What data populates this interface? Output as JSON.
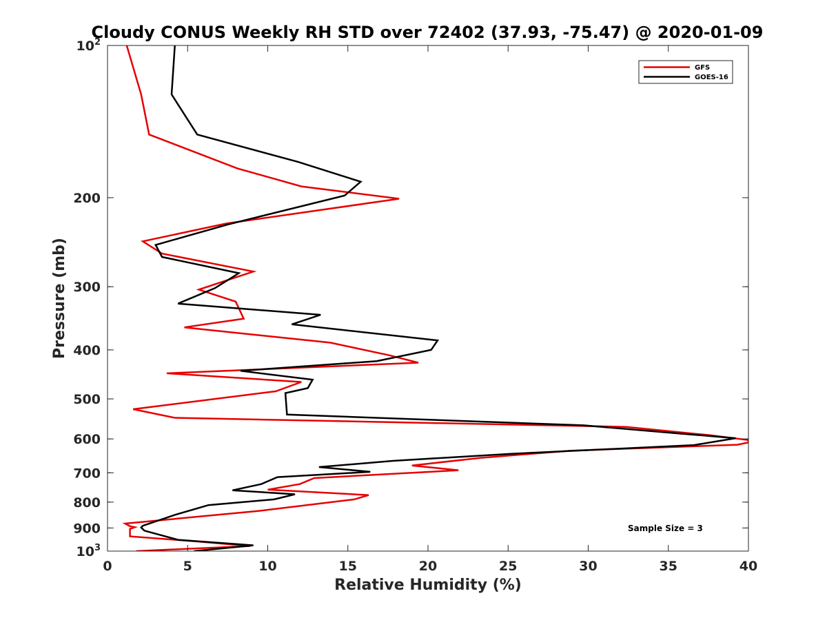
{
  "chart_data": {
    "type": "line",
    "title": "Cloudy CONUS Weekly RH STD over 72402 (37.93, -75.47) @ 2020-01-09",
    "xlabel": "Relative Humidity (%)",
    "ylabel": "Pressure (mb)",
    "xlim": [
      0,
      40
    ],
    "ylim": [
      100,
      1000
    ],
    "y_scale": "log",
    "y_reversed": true,
    "grid": false,
    "legend_position": "top-right",
    "x_ticks": [
      {
        "value": 0,
        "label": "0"
      },
      {
        "value": 5,
        "label": "5"
      },
      {
        "value": 10,
        "label": "10"
      },
      {
        "value": 15,
        "label": "15"
      },
      {
        "value": 20,
        "label": "20"
      },
      {
        "value": 25,
        "label": "25"
      },
      {
        "value": 30,
        "label": "30"
      },
      {
        "value": 35,
        "label": "35"
      },
      {
        "value": 40,
        "label": "40"
      }
    ],
    "y_ticks": [
      {
        "value": 100,
        "base": "10",
        "exp": "2"
      },
      {
        "value": 200,
        "base": "200",
        "exp": ""
      },
      {
        "value": 300,
        "base": "300",
        "exp": ""
      },
      {
        "value": 400,
        "base": "400",
        "exp": ""
      },
      {
        "value": 500,
        "base": "500",
        "exp": ""
      },
      {
        "value": 600,
        "base": "600",
        "exp": ""
      },
      {
        "value": 700,
        "base": "700",
        "exp": ""
      },
      {
        "value": 800,
        "base": "800",
        "exp": ""
      },
      {
        "value": 900,
        "base": "900",
        "exp": ""
      },
      {
        "value": 1000,
        "base": "10",
        "exp": "3"
      }
    ],
    "series": [
      {
        "name": "GFS",
        "color": "#e60000",
        "points": [
          [
            1.2,
            100
          ],
          [
            2.1,
            125
          ],
          [
            2.6,
            150
          ],
          [
            8.1,
            175
          ],
          [
            12.1,
            190
          ],
          [
            18.2,
            201
          ],
          [
            7.4,
            225
          ],
          [
            2.2,
            244
          ],
          [
            3.4,
            258
          ],
          [
            9.1,
            280
          ],
          [
            5.7,
            304
          ],
          [
            8.0,
            321
          ],
          [
            8.5,
            347
          ],
          [
            4.8,
            361
          ],
          [
            13.9,
            387
          ],
          [
            17.6,
            410
          ],
          [
            19.4,
            424
          ],
          [
            3.7,
            445
          ],
          [
            12.1,
            463
          ],
          [
            10.5,
            483
          ],
          [
            1.6,
            524
          ],
          [
            4.2,
            545
          ],
          [
            32.4,
            568
          ],
          [
            37.6,
            590
          ],
          [
            40.0,
            603
          ],
          [
            40.0,
            610
          ],
          [
            39.3,
            616
          ],
          [
            28.9,
            633
          ],
          [
            23.3,
            654
          ],
          [
            19.0,
            677
          ],
          [
            21.9,
            692
          ],
          [
            12.9,
            717
          ],
          [
            12.0,
            737
          ],
          [
            10.0,
            756
          ],
          [
            16.3,
            775
          ],
          [
            15.4,
            790
          ],
          [
            9.4,
            833
          ],
          [
            1.1,
            882
          ],
          [
            1.4,
            893
          ],
          [
            1.7,
            897
          ],
          [
            1.4,
            904
          ],
          [
            1.4,
            935
          ],
          [
            5.6,
            957
          ],
          [
            8.9,
            977
          ],
          [
            1.8,
            1000
          ]
        ]
      },
      {
        "name": "GOES-16",
        "color": "#000000",
        "points": [
          [
            4.2,
            100
          ],
          [
            4.0,
            125
          ],
          [
            5.6,
            150
          ],
          [
            11.9,
            170
          ],
          [
            15.8,
            186
          ],
          [
            14.8,
            198
          ],
          [
            7.5,
            226
          ],
          [
            3.0,
            248
          ],
          [
            3.4,
            262
          ],
          [
            8.2,
            282
          ],
          [
            6.7,
            302
          ],
          [
            4.4,
            324
          ],
          [
            13.3,
            341
          ],
          [
            11.5,
            356
          ],
          [
            20.6,
            383
          ],
          [
            20.2,
            400
          ],
          [
            16.8,
            421
          ],
          [
            8.3,
            440
          ],
          [
            12.8,
            458
          ],
          [
            12.5,
            476
          ],
          [
            11.1,
            487
          ],
          [
            11.2,
            537
          ],
          [
            29.7,
            564
          ],
          [
            35.6,
            585
          ],
          [
            39.2,
            598
          ],
          [
            36.6,
            617
          ],
          [
            25.2,
            642
          ],
          [
            17.8,
            663
          ],
          [
            13.2,
            682
          ],
          [
            16.4,
            697
          ],
          [
            10.6,
            714
          ],
          [
            9.6,
            737
          ],
          [
            7.8,
            758
          ],
          [
            11.7,
            772
          ],
          [
            10.4,
            790
          ],
          [
            6.3,
            811
          ],
          [
            4.2,
            848
          ],
          [
            2.2,
            891
          ],
          [
            2.1,
            898
          ],
          [
            2.3,
            911
          ],
          [
            4.4,
            950
          ],
          [
            9.1,
            974
          ],
          [
            5.4,
            1000
          ]
        ]
      }
    ],
    "annotation": "Sample Size = 3"
  }
}
